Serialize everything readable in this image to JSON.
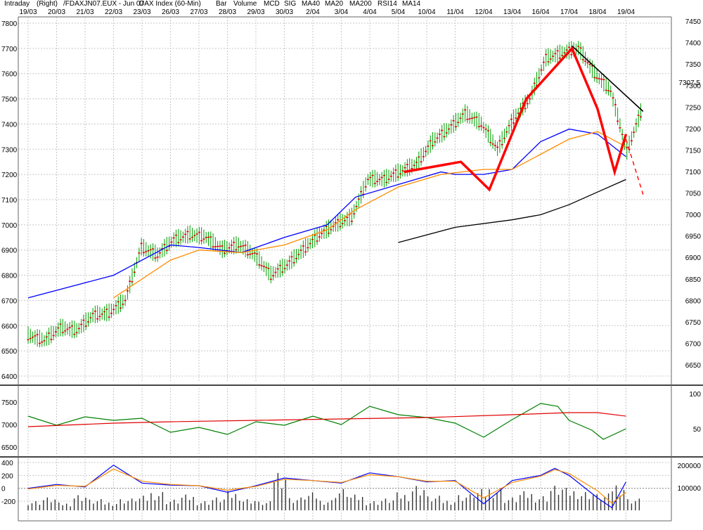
{
  "header": {
    "items": [
      {
        "text": "Intraday",
        "color": "#000000"
      },
      {
        "text": "(Right)",
        "color": "#000000"
      },
      {
        "text": "/FDAXJN07.EUX - Jun 07",
        "color": "#000000"
      },
      {
        "text": "DAX Index (60-Min)",
        "color": "#000000"
      },
      {
        "text": "Bar",
        "color": "#e00000"
      },
      {
        "text": "Volume",
        "color": "#000000"
      },
      {
        "text": "MCD",
        "color": "#0000ff"
      },
      {
        "text": "SIG",
        "color": "#ff8c00"
      },
      {
        "text": "MA40",
        "color": "#ff8c00"
      },
      {
        "text": "MA20",
        "color": "#0000ff"
      },
      {
        "text": "MA200",
        "color": "#000000"
      },
      {
        "text": "RSI14",
        "color": "#008000"
      },
      {
        "text": "MA14",
        "color": "#e00000"
      }
    ]
  },
  "chart_data": {
    "type": "line",
    "dates": [
      "19/03",
      "20/03",
      "21/03",
      "22/03",
      "23/03",
      "26/03",
      "27/03",
      "28/03",
      "29/03",
      "30/03",
      "2/04",
      "3/04",
      "4/04",
      "5/04",
      "10/04",
      "11/04",
      "12/04",
      "13/04",
      "16/04",
      "17/04",
      "18/04",
      "19/04"
    ],
    "panels": [
      {
        "name": "price",
        "left_axis": {
          "range": [
            6370,
            7810
          ],
          "ticks": [
            6400,
            6500,
            6600,
            6700,
            6800,
            6900,
            7000,
            7100,
            7200,
            7300,
            7400,
            7500,
            7600,
            7700,
            7800
          ]
        },
        "right_axis": {
          "range": [
            6590,
            7470
          ],
          "ticks": [
            6650,
            6700,
            6750,
            6800,
            6850,
            6900,
            6950,
            7000,
            7050,
            7100,
            7150,
            7200,
            7250,
            7300,
            7350,
            7400,
            7450
          ]
        },
        "price_close_series": [
          6560,
          6540,
          6590,
          6580,
          6640,
          6650,
          6700,
          6910,
          6880,
          6940,
          6960,
          6950,
          6900,
          6920,
          6880,
          6800,
          6840,
          6900,
          6960,
          7000,
          7030,
          7180,
          7180,
          7210,
          7240,
          7330,
          7380,
          7440,
          7400,
          7300,
          7420,
          7500,
          7660,
          7680,
          7700,
          7600,
          7530,
          7290,
          7470
        ],
        "last_price": {
          "value": 7307.5,
          "label": "7307.5",
          "color": "#e00000"
        },
        "series": [
          {
            "name": "MA20",
            "color": "#0000ff",
            "points": [
              [
                0.0,
                6710
              ],
              [
                3.0,
                6800
              ],
              [
                5.0,
                6920
              ],
              [
                6.0,
                6910
              ],
              [
                7.5,
                6890
              ],
              [
                9.0,
                6950
              ],
              [
                10.5,
                7000
              ],
              [
                11.5,
                7110
              ],
              [
                13.0,
                7160
              ],
              [
                14.5,
                7210
              ],
              [
                15.0,
                7200
              ],
              [
                16.0,
                7200
              ],
              [
                17.0,
                7220
              ],
              [
                18.0,
                7330
              ],
              [
                19.0,
                7380
              ],
              [
                20.0,
                7360
              ],
              [
                21.0,
                7270
              ]
            ]
          },
          {
            "name": "MA40",
            "color": "#ff8c00",
            "points": [
              [
                3.0,
                6710
              ],
              [
                5.0,
                6860
              ],
              [
                6.0,
                6900
              ],
              [
                7.5,
                6890
              ],
              [
                9.0,
                6920
              ],
              [
                10.5,
                6980
              ],
              [
                11.5,
                7060
              ],
              [
                13.0,
                7150
              ],
              [
                14.5,
                7200
              ],
              [
                16.0,
                7220
              ],
              [
                17.0,
                7220
              ],
              [
                18.0,
                7280
              ],
              [
                19.0,
                7340
              ],
              [
                20.0,
                7370
              ],
              [
                21.0,
                7310
              ]
            ]
          },
          {
            "name": "MA200",
            "color": "#000000",
            "points": [
              [
                13.0,
                6930
              ],
              [
                15.0,
                6990
              ],
              [
                17.0,
                7020
              ],
              [
                18.0,
                7040
              ],
              [
                19.0,
                7080
              ],
              [
                20.0,
                7130
              ],
              [
                21.0,
                7180
              ]
            ]
          }
        ],
        "annotations": {
          "pattern_line": [
            [
              13.2,
              7210
            ],
            [
              15.2,
              7250
            ],
            [
              16.2,
              7140
            ],
            [
              17.5,
              7500
            ],
            [
              19.1,
              7700
            ],
            [
              20.0,
              7460
            ],
            [
              20.6,
              7210
            ],
            [
              21.0,
              7360
            ]
          ],
          "trend_line": [
            [
              19.1,
              7710
            ],
            [
              21.6,
              7450
            ]
          ],
          "projection_line": [
            [
              21.0,
              7340
            ],
            [
              21.6,
              7120
            ]
          ]
        }
      },
      {
        "name": "rsi",
        "left_axis": {
          "ticks": [
            6500,
            7000,
            7500
          ]
        },
        "right_axis": {
          "range": [
            20,
            100
          ],
          "ticks": [
            50,
            100
          ]
        },
        "series": [
          {
            "name": "RSI14",
            "color": "#008000",
            "points": [
              [
                0.0,
                68
              ],
              [
                1.0,
                55
              ],
              [
                2.0,
                67
              ],
              [
                3.0,
                62
              ],
              [
                4.0,
                65
              ],
              [
                5.0,
                45
              ],
              [
                6.0,
                52
              ],
              [
                7.0,
                42
              ],
              [
                8.0,
                60
              ],
              [
                9.0,
                55
              ],
              [
                10.0,
                68
              ],
              [
                11.0,
                56
              ],
              [
                12.0,
                82
              ],
              [
                13.0,
                70
              ],
              [
                14.0,
                66
              ],
              [
                15.0,
                58
              ],
              [
                16.0,
                38
              ],
              [
                17.0,
                63
              ],
              [
                18.0,
                86
              ],
              [
                18.6,
                82
              ],
              [
                19.0,
                62
              ],
              [
                19.8,
                48
              ],
              [
                20.2,
                35
              ],
              [
                21.0,
                50
              ]
            ]
          },
          {
            "name": "MA14",
            "color": "#e00000",
            "points": [
              [
                0.0,
                53
              ],
              [
                3.0,
                58
              ],
              [
                5.0,
                60
              ],
              [
                8.0,
                62
              ],
              [
                11.0,
                64
              ],
              [
                14.0,
                66
              ],
              [
                17.0,
                70
              ],
              [
                19.0,
                73
              ],
              [
                20.0,
                73
              ],
              [
                21.0,
                68
              ]
            ]
          }
        ]
      },
      {
        "name": "macd_volume",
        "left_axis": {
          "range": [
            -300,
            400
          ],
          "ticks": [
            400,
            200,
            0,
            -200
          ]
        },
        "right_axis": {
          "range": [
            0,
            200000
          ],
          "ticks": [
            200000,
            100000
          ]
        },
        "series": [
          {
            "name": "MCD",
            "color": "#0000ff",
            "points": [
              [
                0.0,
                0
              ],
              [
                1.0,
                60
              ],
              [
                2.0,
                20
              ],
              [
                3.0,
                360
              ],
              [
                4.0,
                80
              ],
              [
                5.0,
                50
              ],
              [
                6.0,
                40
              ],
              [
                7.0,
                -60
              ],
              [
                8.0,
                40
              ],
              [
                9.0,
                160
              ],
              [
                10.0,
                120
              ],
              [
                11.0,
                80
              ],
              [
                12.0,
                240
              ],
              [
                13.0,
                180
              ],
              [
                14.0,
                100
              ],
              [
                15.0,
                120
              ],
              [
                16.0,
                -240
              ],
              [
                17.0,
                120
              ],
              [
                18.0,
                200
              ],
              [
                18.5,
                310
              ],
              [
                19.0,
                200
              ],
              [
                20.0,
                -150
              ],
              [
                20.5,
                -300
              ],
              [
                21.0,
                100
              ]
            ]
          },
          {
            "name": "SIG",
            "color": "#ff8c00",
            "points": [
              [
                0.0,
                -10
              ],
              [
                1.0,
                45
              ],
              [
                2.0,
                30
              ],
              [
                3.0,
                300
              ],
              [
                4.0,
                110
              ],
              [
                5.0,
                60
              ],
              [
                6.0,
                40
              ],
              [
                7.0,
                -30
              ],
              [
                8.0,
                30
              ],
              [
                9.0,
                140
              ],
              [
                10.0,
                120
              ],
              [
                11.0,
                90
              ],
              [
                12.0,
                210
              ],
              [
                13.0,
                180
              ],
              [
                14.0,
                110
              ],
              [
                15.0,
                110
              ],
              [
                16.0,
                -150
              ],
              [
                17.0,
                90
              ],
              [
                18.0,
                190
              ],
              [
                18.5,
                290
              ],
              [
                19.0,
                230
              ],
              [
                20.0,
                -40
              ],
              [
                20.5,
                -230
              ],
              [
                21.0,
                -60
              ]
            ]
          }
        ],
        "volume_bars": [
          45,
          60,
          35,
          75,
          50,
          40,
          55,
          65,
          90,
          50,
          70,
          45,
          60,
          85,
          55,
          40,
          195,
          60,
          80,
          50,
          100,
          70,
          45,
          55,
          80,
          120,
          65,
          50,
          75,
          95,
          110,
          60,
          85,
          70,
          115,
          100,
          90,
          75,
          130,
          55
        ]
      }
    ]
  }
}
